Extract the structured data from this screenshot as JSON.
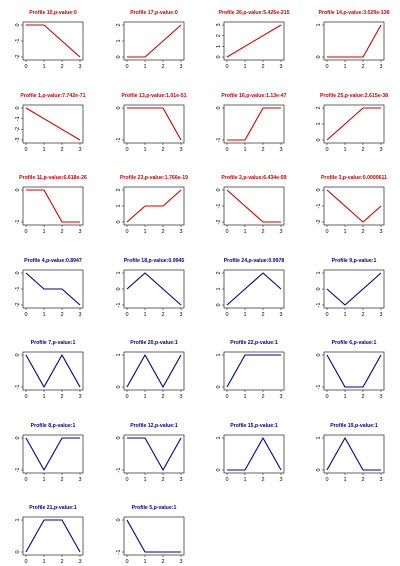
{
  "chart_data": [
    {
      "type": "line",
      "title": "Profile 10,p-value:0",
      "color": "#cc0000",
      "x": [
        0,
        1,
        2,
        3
      ],
      "values": [
        0,
        0,
        -1,
        -2
      ],
      "ylim": [
        -2,
        0
      ],
      "yticks": [
        0,
        -1,
        -2
      ],
      "xticks": [
        0,
        1,
        2,
        3
      ]
    },
    {
      "type": "line",
      "title": "Profile 17,p-value:0",
      "color": "#cc0000",
      "x": [
        0,
        1,
        2,
        3
      ],
      "values": [
        0,
        0,
        1,
        2
      ],
      "ylim": [
        0,
        2
      ],
      "yticks": [
        0,
        1,
        2
      ],
      "xticks": [
        0,
        1,
        2,
        3
      ]
    },
    {
      "type": "line",
      "title": "Profile 26,p-value:5.426e-215",
      "color": "#cc0000",
      "x": [
        0,
        1,
        2,
        3
      ],
      "values": [
        0,
        1,
        2,
        3
      ],
      "ylim": [
        0,
        3
      ],
      "yticks": [
        0,
        1,
        2,
        3
      ],
      "xticks": [
        0,
        1,
        2,
        3
      ]
    },
    {
      "type": "line",
      "title": "Profile 14,p-value:3.029e-136",
      "color": "#cc0000",
      "x": [
        0,
        1,
        2,
        3
      ],
      "values": [
        0,
        0,
        0,
        1
      ],
      "ylim": [
        0,
        1
      ],
      "yticks": [
        0,
        1
      ],
      "xticks": [
        0,
        1,
        2,
        3
      ]
    },
    {
      "type": "line",
      "title": "Profile 1,p-value:7.742e-71",
      "color": "#cc0000",
      "x": [
        0,
        1,
        2,
        3
      ],
      "values": [
        0,
        -1,
        -2,
        -3
      ],
      "ylim": [
        -3,
        0
      ],
      "yticks": [
        0,
        -1,
        -2,
        -3
      ],
      "xticks": [
        0,
        1,
        2,
        3
      ]
    },
    {
      "type": "line",
      "title": "Profile 13,p-value:1.01e-51",
      "color": "#cc0000",
      "x": [
        0,
        1,
        2,
        3
      ],
      "values": [
        0,
        0,
        0,
        -1
      ],
      "ylim": [
        -1,
        0
      ],
      "yticks": [
        0,
        -1
      ],
      "xticks": [
        0,
        1,
        2,
        3
      ]
    },
    {
      "type": "line",
      "title": "Profile 16,p-value:1.13e-47",
      "color": "#cc0000",
      "x": [
        0,
        1,
        2,
        3
      ],
      "values": [
        -1,
        -1,
        0,
        0
      ],
      "ylim": [
        -1,
        0
      ],
      "yticks": [
        0,
        -1
      ],
      "xticks": [
        0,
        1,
        2,
        3
      ]
    },
    {
      "type": "line",
      "title": "Profile 25,p-value:2.615e-38",
      "color": "#cc0000",
      "x": [
        0,
        1,
        2,
        3
      ],
      "values": [
        0,
        1,
        2,
        2
      ],
      "ylim": [
        0,
        2
      ],
      "yticks": [
        0,
        1,
        2
      ],
      "xticks": [
        0,
        1,
        2,
        3
      ]
    },
    {
      "type": "line",
      "title": "Profile 11,p-value:6.618e-26",
      "color": "#cc0000",
      "x": [
        0,
        1,
        2,
        3
      ],
      "values": [
        0,
        0,
        -1,
        -1
      ],
      "ylim": [
        -1,
        0
      ],
      "yticks": [
        0,
        -1
      ],
      "xticks": [
        0,
        1,
        2,
        3
      ]
    },
    {
      "type": "line",
      "title": "Profile 23,p-value:1.766e-19",
      "color": "#cc0000",
      "x": [
        0,
        1,
        2,
        3
      ],
      "values": [
        0,
        1,
        1,
        2
      ],
      "ylim": [
        0,
        2
      ],
      "yticks": [
        0,
        1,
        2
      ],
      "xticks": [
        0,
        1,
        2,
        3
      ]
    },
    {
      "type": "line",
      "title": "Profile 2,p-value:6.434e-09",
      "color": "#cc0000",
      "x": [
        0,
        1,
        2,
        3
      ],
      "values": [
        0,
        -1,
        -2,
        -2
      ],
      "ylim": [
        -2,
        0
      ],
      "yticks": [
        0,
        -1,
        -2
      ],
      "xticks": [
        0,
        1,
        2,
        3
      ]
    },
    {
      "type": "line",
      "title": "Profile 3,p-value:0.0000611",
      "color": "#cc0000",
      "x": [
        0,
        1,
        2,
        3
      ],
      "values": [
        0,
        -1,
        -2,
        -1
      ],
      "ylim": [
        -2,
        0
      ],
      "yticks": [
        0,
        -1,
        -2
      ],
      "xticks": [
        0,
        1,
        2,
        3
      ]
    },
    {
      "type": "line",
      "title": "Profile 4,p-value:0.8947",
      "color": "#00008b",
      "x": [
        0,
        1,
        2,
        3
      ],
      "values": [
        0,
        -1,
        -1,
        -2
      ],
      "ylim": [
        -2,
        0
      ],
      "yticks": [
        0,
        -1,
        -2
      ],
      "xticks": [
        0,
        1,
        2,
        3
      ]
    },
    {
      "type": "line",
      "title": "Profile 18,p-value:0.9945",
      "color": "#00008b",
      "x": [
        0,
        1,
        2,
        3
      ],
      "values": [
        0,
        1,
        0,
        -1
      ],
      "ylim": [
        -1,
        1
      ],
      "yticks": [
        1,
        0,
        -1
      ],
      "xticks": [
        0,
        1,
        2,
        3
      ]
    },
    {
      "type": "line",
      "title": "Profile 24,p-value:0.9978",
      "color": "#00008b",
      "x": [
        0,
        1,
        2,
        3
      ],
      "values": [
        0,
        1,
        2,
        1
      ],
      "ylim": [
        0,
        2
      ],
      "yticks": [
        0,
        1,
        2
      ],
      "xticks": [
        0,
        1,
        2,
        3
      ]
    },
    {
      "type": "line",
      "title": "Profile 9,p-value:1",
      "color": "#00008b",
      "x": [
        0,
        1,
        2,
        3
      ],
      "values": [
        0,
        -1,
        0,
        1
      ],
      "ylim": [
        -1,
        1
      ],
      "yticks": [
        1,
        0,
        -1
      ],
      "xticks": [
        0,
        1,
        2,
        3
      ]
    },
    {
      "type": "line",
      "title": "Profile 7,p-value:1",
      "color": "#00008b",
      "x": [
        0,
        1,
        2,
        3
      ],
      "values": [
        0,
        -1,
        0,
        -1
      ],
      "ylim": [
        -1,
        0
      ],
      "yticks": [
        0,
        -1
      ],
      "xticks": [
        0,
        1,
        2,
        3
      ]
    },
    {
      "type": "line",
      "title": "Profile 20,p-value:1",
      "color": "#00008b",
      "x": [
        0,
        1,
        2,
        3
      ],
      "values": [
        0,
        1,
        0,
        1
      ],
      "ylim": [
        0,
        1
      ],
      "yticks": [
        0,
        1
      ],
      "xticks": [
        0,
        1,
        2,
        3
      ]
    },
    {
      "type": "line",
      "title": "Profile 22,p-value:1",
      "color": "#00008b",
      "x": [
        0,
        1,
        2,
        3
      ],
      "values": [
        0,
        1,
        1,
        1
      ],
      "ylim": [
        0,
        1
      ],
      "yticks": [
        0,
        1
      ],
      "xticks": [
        0,
        1,
        2,
        3
      ]
    },
    {
      "type": "line",
      "title": "Profile 6,p-value:1",
      "color": "#00008b",
      "x": [
        0,
        1,
        2,
        3
      ],
      "values": [
        0,
        -1,
        -1,
        0
      ],
      "ylim": [
        -1,
        0
      ],
      "yticks": [
        0,
        -1
      ],
      "xticks": [
        0,
        1,
        2,
        3
      ]
    },
    {
      "type": "line",
      "title": "Profile 8,p-value:1",
      "color": "#00008b",
      "x": [
        0,
        1,
        2,
        3
      ],
      "values": [
        0,
        -1,
        0,
        0
      ],
      "ylim": [
        -1,
        0
      ],
      "yticks": [
        0,
        -1
      ],
      "xticks": [
        0,
        1,
        2,
        3
      ]
    },
    {
      "type": "line",
      "title": "Profile 12,p-value:1",
      "color": "#00008b",
      "x": [
        0,
        1,
        2,
        3
      ],
      "values": [
        0,
        0,
        -1,
        0
      ],
      "ylim": [
        -1,
        0
      ],
      "yticks": [
        0,
        -1
      ],
      "xticks": [
        0,
        1,
        2,
        3
      ]
    },
    {
      "type": "line",
      "title": "Profile 15,p-value:1",
      "color": "#00008b",
      "x": [
        0,
        1,
        2,
        3
      ],
      "values": [
        0,
        0,
        1,
        0
      ],
      "ylim": [
        0,
        1
      ],
      "yticks": [
        0,
        1
      ],
      "xticks": [
        0,
        1,
        2,
        3
      ]
    },
    {
      "type": "line",
      "title": "Profile 19,p-value:1",
      "color": "#00008b",
      "x": [
        0,
        1,
        2,
        3
      ],
      "values": [
        0,
        1,
        0,
        0
      ],
      "ylim": [
        0,
        1
      ],
      "yticks": [
        0,
        1
      ],
      "xticks": [
        0,
        1,
        2,
        3
      ]
    },
    {
      "type": "line",
      "title": "Profile 21,p-value:1",
      "color": "#00008b",
      "x": [
        0,
        1,
        2,
        3
      ],
      "values": [
        0,
        1,
        1,
        0
      ],
      "ylim": [
        0,
        1
      ],
      "yticks": [
        0,
        1
      ],
      "xticks": [
        0,
        1,
        2,
        3
      ]
    },
    {
      "type": "line",
      "title": "Profile 5,p-value:1",
      "color": "#00008b",
      "x": [
        0,
        1,
        2,
        3
      ],
      "values": [
        0,
        -1,
        -1,
        -1
      ],
      "ylim": [
        -1,
        0
      ],
      "yticks": [
        0,
        -1
      ],
      "xticks": [
        0,
        1,
        2,
        3
      ]
    }
  ]
}
